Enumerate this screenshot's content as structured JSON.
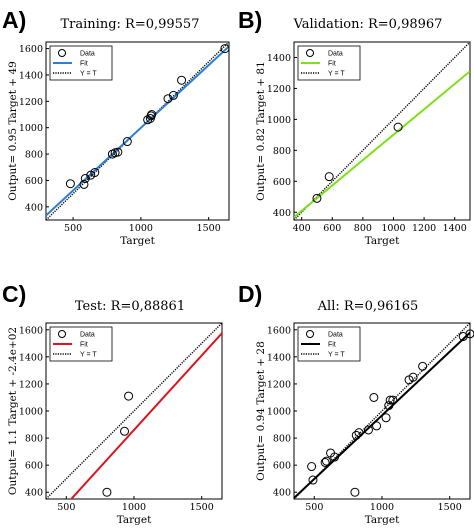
{
  "chart_data": [
    {
      "type": "scatter",
      "panel_letter": "A)",
      "title": "Training: R=0,99557",
      "xlabel": "Target",
      "ylabel": "Output= 0.95 Target + 49",
      "xlim": [
        300,
        1650
      ],
      "ylim": [
        300,
        1650
      ],
      "xticks": [
        "500",
        "1000",
        "1500"
      ],
      "yticks": [
        "400",
        "600",
        "800",
        "1000",
        "1200",
        "1400",
        "1600"
      ],
      "grid": false,
      "legend_position": "top-left",
      "legend": [
        "Data",
        "Fit",
        "Y = T"
      ],
      "fit_color": "#2e7fd4",
      "fit": {
        "slope": 0.95,
        "intercept": 49
      },
      "series": [
        {
          "name": "Data",
          "x": [
            480,
            580,
            590,
            630,
            660,
            790,
            810,
            830,
            900,
            1050,
            1070,
            1075,
            1080,
            1200,
            1240,
            1300,
            1620
          ],
          "y": [
            575,
            570,
            615,
            640,
            660,
            800,
            810,
            815,
            895,
            1060,
            1070,
            1090,
            1100,
            1220,
            1245,
            1360,
            1600
          ]
        }
      ]
    },
    {
      "type": "scatter",
      "panel_letter": "B)",
      "title": "Validation: R=0,98967",
      "xlabel": "Target",
      "ylabel": "Output= 0.82 Target + 81",
      "xlim": [
        350,
        1500
      ],
      "ylim": [
        350,
        1500
      ],
      "xticks": [
        "400",
        "600",
        "800",
        "1000",
        "1200",
        "1400"
      ],
      "yticks": [
        "400",
        "600",
        "800",
        "1000",
        "1200",
        "1400"
      ],
      "grid": false,
      "legend_position": "top-left",
      "legend": [
        "Data",
        "Fit",
        "Y = T"
      ],
      "fit_color": "#7ee01a",
      "fit": {
        "slope": 0.82,
        "intercept": 81
      },
      "series": [
        {
          "name": "Data",
          "x": [
            500,
            580,
            1030
          ],
          "y": [
            490,
            630,
            950
          ]
        }
      ]
    },
    {
      "type": "scatter",
      "panel_letter": "C)",
      "title": "Test: R=0,88861",
      "xlabel": "Target",
      "ylabel": "Output= 1.1 Target + -2.4e+02",
      "xlim": [
        350,
        1650
      ],
      "ylim": [
        350,
        1650
      ],
      "xticks": [
        "500",
        "1000",
        "1500"
      ],
      "yticks": [
        "400",
        "600",
        "800",
        "1000",
        "1200",
        "1400",
        "1600"
      ],
      "grid": false,
      "legend_position": "top-left",
      "legend": [
        "Data",
        "Fit",
        "Y = T"
      ],
      "fit_color": "#e0121e",
      "fit": {
        "slope": 1.1,
        "intercept": -240
      },
      "series": [
        {
          "name": "Data",
          "x": [
            800,
            930,
            960
          ],
          "y": [
            400,
            850,
            1110
          ]
        }
      ]
    },
    {
      "type": "scatter",
      "panel_letter": "D)",
      "title": "All: R=0,96165",
      "xlabel": "Target",
      "ylabel": "Output= 0.94 Target + 28",
      "xlim": [
        350,
        1650
      ],
      "ylim": [
        350,
        1650
      ],
      "xticks": [
        "500",
        "1000",
        "1500"
      ],
      "yticks": [
        "400",
        "600",
        "800",
        "1000",
        "1200",
        "1400",
        "1600"
      ],
      "grid": false,
      "legend_position": "top-left",
      "legend": [
        "Data",
        "Fit",
        "Y = T"
      ],
      "fit_color": "#000000",
      "fit": {
        "slope": 0.94,
        "intercept": 28
      },
      "series": [
        {
          "name": "Data",
          "x": [
            480,
            490,
            580,
            590,
            620,
            650,
            800,
            810,
            830,
            900,
            940,
            960,
            1030,
            1050,
            1060,
            1080,
            1200,
            1230,
            1300,
            1600,
            1650
          ],
          "y": [
            590,
            490,
            620,
            630,
            690,
            660,
            400,
            820,
            840,
            860,
            1100,
            890,
            950,
            1040,
            1080,
            1080,
            1230,
            1250,
            1330,
            1550,
            1570
          ]
        }
      ]
    }
  ]
}
